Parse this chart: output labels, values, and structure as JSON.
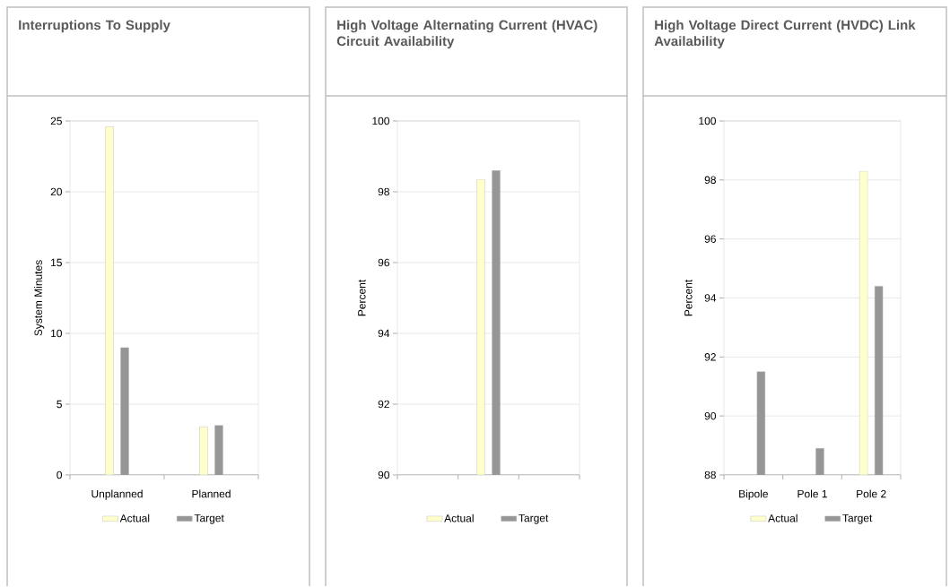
{
  "chart_data": [
    {
      "type": "bar",
      "title": "Interruptions To Supply",
      "ylabel": "System Minutes",
      "categories": [
        "Unplanned",
        "Planned"
      ],
      "series": [
        {
          "name": "Actual",
          "color": "#ffffcc",
          "values": [
            24.6,
            3.4
          ]
        },
        {
          "name": "Target",
          "color": "#969696",
          "values": [
            9.0,
            3.5
          ]
        }
      ],
      "ylim": [
        0,
        25
      ],
      "yticks": [
        0,
        5,
        10,
        15,
        20,
        25
      ],
      "grid": "y",
      "legend": "bottom"
    },
    {
      "type": "bar",
      "title": "High Voltage Alternating Current (HVAC) Circuit Availability",
      "ylabel": "Percent",
      "categories": [
        null,
        null,
        null
      ],
      "series": [
        {
          "name": "Actual",
          "color": "#ffffcc",
          "values": [
            null,
            98.35,
            null
          ]
        },
        {
          "name": "Target",
          "color": "#969696",
          "values": [
            null,
            98.6,
            null
          ]
        }
      ],
      "ylim": [
        90,
        100
      ],
      "yticks": [
        90,
        92,
        94,
        96,
        98,
        100
      ],
      "grid": "y",
      "legend": "bottom"
    },
    {
      "type": "bar",
      "title": "High Voltage Direct Current (HVDC) Link Availability",
      "ylabel": "Percent",
      "categories": [
        "Bipole",
        "Pole 1",
        "Pole 2"
      ],
      "series": [
        {
          "name": "Actual",
          "color": "#ffffcc",
          "values": [
            null,
            null,
            98.3
          ]
        },
        {
          "name": "Target",
          "color": "#969696",
          "values": [
            91.5,
            88.9,
            94.4
          ]
        }
      ],
      "ylim": [
        88,
        100
      ],
      "yticks": [
        88,
        90,
        92,
        94,
        96,
        98,
        100
      ],
      "grid": "y",
      "legend": "bottom"
    }
  ]
}
